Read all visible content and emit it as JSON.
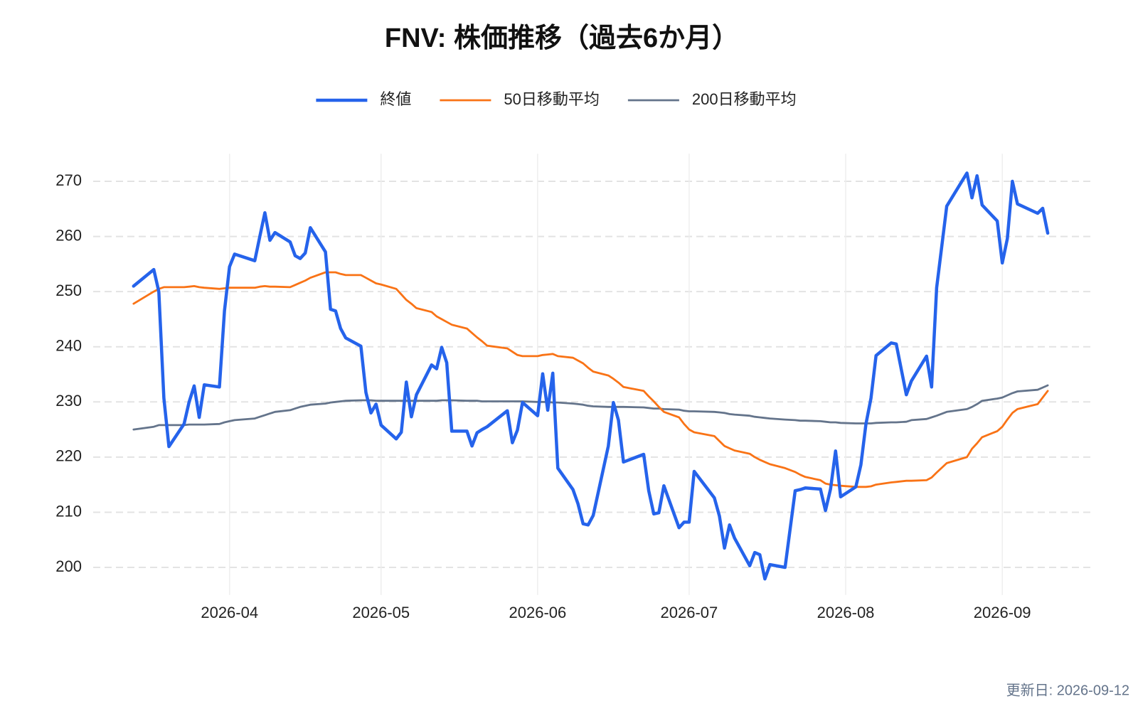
{
  "chart_data": {
    "type": "line",
    "title": "FNV: 株価推移（過去6か月）",
    "footer": "更新日: 2026-09-12",
    "legend": "top",
    "grid": true,
    "xlim": [
      "2026-03-05",
      "2026-09-19"
    ],
    "xticks": [
      {
        "value": "2026-04-01",
        "label": "2026-04"
      },
      {
        "value": "2026-05-01",
        "label": "2026-05"
      },
      {
        "value": "2026-06-01",
        "label": "2026-06"
      },
      {
        "value": "2026-07-01",
        "label": "2026-07"
      },
      {
        "value": "2026-08-01",
        "label": "2026-08"
      },
      {
        "value": "2026-09-01",
        "label": "2026-09"
      }
    ],
    "ylim": [
      195,
      275
    ],
    "yticks": [
      200,
      210,
      220,
      230,
      240,
      250,
      260,
      270
    ],
    "x": [
      "2026-03-13",
      "2026-03-17",
      "2026-03-18",
      "2026-03-19",
      "2026-03-20",
      "2026-03-23",
      "2026-03-24",
      "2026-03-25",
      "2026-03-26",
      "2026-03-27",
      "2026-03-30",
      "2026-03-31",
      "2026-04-01",
      "2026-04-02",
      "2026-04-06",
      "2026-04-07",
      "2026-04-08",
      "2026-04-09",
      "2026-04-10",
      "2026-04-13",
      "2026-04-14",
      "2026-04-15",
      "2026-04-16",
      "2026-04-17",
      "2026-04-20",
      "2026-04-21",
      "2026-04-22",
      "2026-04-23",
      "2026-04-24",
      "2026-04-27",
      "2026-04-28",
      "2026-04-29",
      "2026-04-30",
      "2026-05-01",
      "2026-05-04",
      "2026-05-05",
      "2026-05-06",
      "2026-05-07",
      "2026-05-08",
      "2026-05-11",
      "2026-05-12",
      "2026-05-13",
      "2026-05-14",
      "2026-05-15",
      "2026-05-18",
      "2026-05-19",
      "2026-05-20",
      "2026-05-21",
      "2026-05-22",
      "2026-05-26",
      "2026-05-27",
      "2026-05-28",
      "2026-05-29",
      "2026-06-01",
      "2026-06-02",
      "2026-06-03",
      "2026-06-04",
      "2026-06-05",
      "2026-06-08",
      "2026-06-09",
      "2026-06-10",
      "2026-06-11",
      "2026-06-12",
      "2026-06-15",
      "2026-06-16",
      "2026-06-17",
      "2026-06-18",
      "2026-06-22",
      "2026-06-23",
      "2026-06-24",
      "2026-06-25",
      "2026-06-26",
      "2026-06-29",
      "2026-06-30",
      "2026-07-01",
      "2026-07-02",
      "2026-07-06",
      "2026-07-07",
      "2026-07-08",
      "2026-07-09",
      "2026-07-10",
      "2026-07-13",
      "2026-07-14",
      "2026-07-15",
      "2026-07-16",
      "2026-07-17",
      "2026-07-20",
      "2026-07-22",
      "2026-07-23",
      "2026-07-24",
      "2026-07-27",
      "2026-07-28",
      "2026-07-29",
      "2026-07-30",
      "2026-07-31",
      "2026-08-03",
      "2026-08-04",
      "2026-08-05",
      "2026-08-06",
      "2026-08-07",
      "2026-08-10",
      "2026-08-11",
      "2026-08-13",
      "2026-08-14",
      "2026-08-17",
      "2026-08-18",
      "2026-08-19",
      "2026-08-21",
      "2026-08-25",
      "2026-08-26",
      "2026-08-27",
      "2026-08-28",
      "2026-08-31",
      "2026-09-01",
      "2026-09-02",
      "2026-09-03",
      "2026-09-04",
      "2026-09-08",
      "2026-09-09",
      "2026-09-10"
    ],
    "series": [
      {
        "name": "終値",
        "color": "#2563eb",
        "width": 4.5,
        "values": [
          251.0,
          254.0,
          250.0,
          230.7,
          221.9,
          226.0,
          230.0,
          232.9,
          227.2,
          233.1,
          232.7,
          246.5,
          254.5,
          256.8,
          255.6,
          260.0,
          264.3,
          259.3,
          260.7,
          259.0,
          256.5,
          256.0,
          257.0,
          261.6,
          257.2,
          246.8,
          246.5,
          243.3,
          241.6,
          240.1,
          231.7,
          228.0,
          229.6,
          225.8,
          223.3,
          224.5,
          233.6,
          227.3,
          231.3,
          236.7,
          236.0,
          239.9,
          237.1,
          224.7,
          224.7,
          222.0,
          224.4,
          225.0,
          225.5,
          228.4,
          222.6,
          224.9,
          229.9,
          227.5,
          235.1,
          228.5,
          235.2,
          218.0,
          214.1,
          211.5,
          207.9,
          207.7,
          209.4,
          222.0,
          229.9,
          226.7,
          219.1,
          220.5,
          213.9,
          209.7,
          209.9,
          214.8,
          207.2,
          208.2,
          208.2,
          217.4,
          212.6,
          209.3,
          203.5,
          207.7,
          205.3,
          200.3,
          202.7,
          202.3,
          197.9,
          200.5,
          200.0,
          213.9,
          214.1,
          214.4,
          214.2,
          210.3,
          214.2,
          221.1,
          212.8,
          214.6,
          218.6,
          226.0,
          230.7,
          238.4,
          240.7,
          240.5,
          231.3,
          233.8,
          238.3,
          232.7,
          250.7,
          265.5,
          271.5,
          267.0,
          271.0,
          265.7,
          262.8,
          255.2,
          259.6,
          270.0,
          265.9,
          264.2,
          265.1,
          260.6
        ]
      },
      {
        "name": "50日移動平均",
        "color": "#f97316",
        "width": 2.8,
        "values": [
          247.8,
          250.0,
          250.5,
          250.8,
          250.8,
          250.8,
          250.9,
          251.0,
          250.8,
          250.7,
          250.5,
          250.6,
          250.7,
          250.7,
          250.7,
          250.9,
          251.0,
          250.9,
          250.9,
          250.8,
          251.2,
          251.6,
          252.0,
          252.5,
          253.5,
          253.5,
          253.5,
          253.2,
          253.0,
          253.0,
          252.5,
          252.0,
          251.5,
          251.3,
          250.5,
          249.5,
          248.5,
          247.8,
          247.0,
          246.3,
          245.5,
          245.0,
          244.5,
          244.0,
          243.3,
          242.5,
          241.7,
          241.0,
          240.2,
          239.7,
          239.1,
          238.5,
          238.3,
          238.3,
          238.5,
          238.6,
          238.7,
          238.3,
          238.0,
          237.5,
          237.0,
          236.2,
          235.5,
          234.8,
          234.2,
          233.5,
          232.7,
          232.0,
          231.0,
          230.1,
          229.1,
          228.2,
          227.2,
          226.0,
          225.0,
          224.5,
          223.8,
          222.9,
          222.0,
          221.6,
          221.2,
          220.6,
          220.0,
          219.5,
          219.1,
          218.7,
          218.0,
          217.3,
          216.8,
          216.4,
          215.8,
          215.2,
          215.0,
          214.9,
          214.8,
          214.6,
          214.6,
          214.6,
          214.7,
          215.0,
          215.4,
          215.5,
          215.7,
          215.7,
          215.8,
          216.3,
          217.2,
          218.9,
          220.0,
          221.5,
          222.5,
          223.6,
          224.7,
          225.5,
          226.8,
          228.0,
          228.7,
          229.6,
          230.8,
          232.0
        ]
      },
      {
        "name": "200日移動平均",
        "color": "#64748b",
        "width": 2.8,
        "values": [
          225.0,
          225.5,
          225.8,
          225.8,
          225.8,
          225.8,
          225.9,
          225.9,
          225.9,
          225.9,
          226.0,
          226.3,
          226.5,
          226.7,
          227.0,
          227.3,
          227.6,
          227.9,
          228.2,
          228.5,
          228.8,
          229.1,
          229.3,
          229.5,
          229.7,
          229.9,
          230.0,
          230.1,
          230.2,
          230.3,
          230.3,
          230.3,
          230.2,
          230.2,
          230.2,
          230.2,
          230.2,
          230.2,
          230.2,
          230.2,
          230.2,
          230.3,
          230.3,
          230.3,
          230.2,
          230.2,
          230.2,
          230.1,
          230.1,
          230.1,
          230.1,
          230.1,
          230.1,
          230.0,
          230.0,
          230.0,
          229.9,
          229.9,
          229.7,
          229.6,
          229.5,
          229.3,
          229.2,
          229.1,
          229.1,
          229.1,
          229.1,
          229.0,
          228.9,
          228.8,
          228.8,
          228.7,
          228.6,
          228.4,
          228.3,
          228.3,
          228.2,
          228.1,
          228.0,
          227.8,
          227.7,
          227.5,
          227.3,
          227.2,
          227.1,
          227.0,
          226.8,
          226.7,
          226.6,
          226.6,
          226.5,
          226.4,
          226.3,
          226.3,
          226.2,
          226.1,
          226.1,
          226.1,
          226.1,
          226.2,
          226.3,
          226.3,
          226.4,
          226.7,
          226.9,
          227.2,
          227.5,
          228.2,
          228.7,
          229.1,
          229.6,
          230.2,
          230.6,
          230.8,
          231.2,
          231.6,
          231.9,
          232.2,
          232.6,
          233.0
        ]
      }
    ]
  }
}
